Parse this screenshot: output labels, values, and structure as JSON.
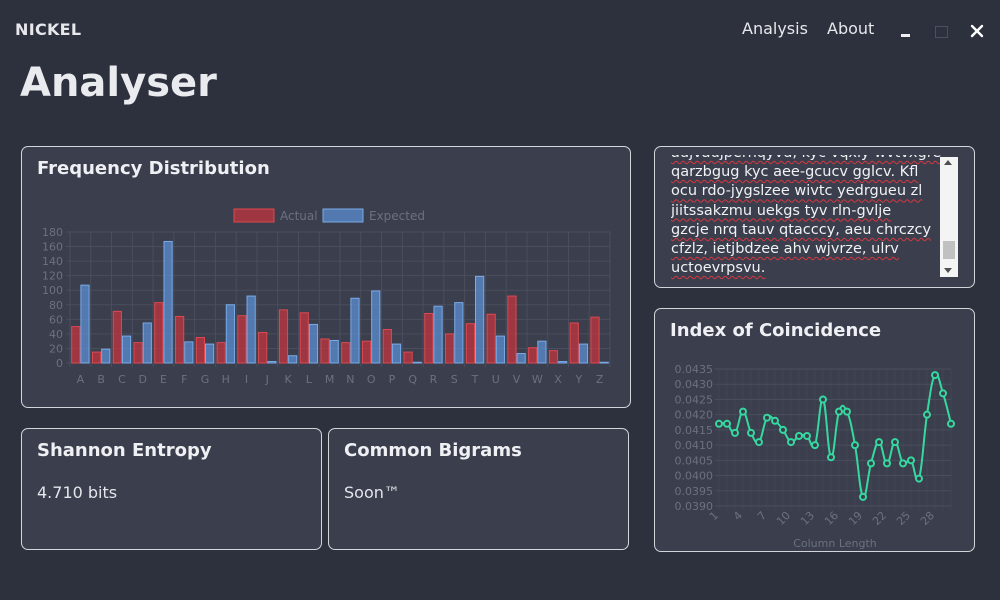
{
  "app": {
    "brand": "NICKEL",
    "nav": [
      {
        "label": "Analysis"
      },
      {
        "label": "About"
      }
    ],
    "page_title": "Analyser"
  },
  "colors": {
    "background": "#2d313e",
    "card": "#3a3e4d",
    "actual": "#c0363e",
    "expected": "#5b8fd2",
    "ioc_line": "#35d9a0"
  },
  "frequency": {
    "title": "Frequency Distribution",
    "chart_data": {
      "type": "bar",
      "categories": [
        "A",
        "B",
        "C",
        "D",
        "E",
        "F",
        "G",
        "H",
        "I",
        "J",
        "K",
        "L",
        "M",
        "N",
        "O",
        "P",
        "Q",
        "R",
        "S",
        "T",
        "U",
        "V",
        "W",
        "X",
        "Y",
        "Z"
      ],
      "series": [
        {
          "name": "Actual",
          "values": [
            50,
            15,
            71,
            28,
            83,
            64,
            35,
            28,
            65,
            42,
            73,
            69,
            33,
            28,
            30,
            46,
            15,
            68,
            40,
            54,
            67,
            92,
            21,
            17,
            55,
            63
          ]
        },
        {
          "name": "Expected",
          "values": [
            107,
            19,
            37,
            55,
            167,
            29,
            26,
            80,
            92,
            2,
            10,
            53,
            31,
            89,
            99,
            26,
            1,
            78,
            83,
            119,
            37,
            13,
            30,
            2,
            26,
            1
          ]
        }
      ],
      "ylim": [
        0,
        180
      ],
      "yticks": [
        0,
        20,
        40,
        60,
        80,
        100,
        120,
        140,
        160,
        180
      ],
      "legend_position": "top",
      "grid": true
    }
  },
  "text_panel": {
    "lines": [
      "aujvaujpernqyvd, kyc vqxly wvtvxgre",
      "qarzbgug kyc aee-gcucv gglcv. Kfl",
      "ocu rdo-jygslzee wivtc yedrgueu zl",
      "jiitssakzmu uekgs tyv rln-gvlje",
      "gzcje nrq tauv qtacccy, aeu chrczcy",
      "cfzlz, ietjbdzee ahv wjvrze, ulrv",
      "uctoevrpsvu."
    ]
  },
  "ioc": {
    "title": "Index of Coincidence",
    "chart_data": {
      "type": "line",
      "x": [
        1,
        2,
        3,
        4,
        5,
        6,
        7,
        8,
        9,
        10,
        11,
        12,
        13,
        14,
        15,
        16,
        17,
        18,
        19,
        20,
        21,
        22,
        23,
        24,
        25,
        26,
        27,
        28,
        29,
        30
      ],
      "series": [
        {
          "values": [
            0.0417,
            0.0417,
            0.0414,
            0.0421,
            0.0414,
            0.0411,
            0.0419,
            0.0418,
            0.0415,
            0.0411,
            0.0413,
            0.0413,
            0.041,
            0.0425,
            0.0406,
            0.0421,
            0.0421,
            0.041,
            0.0393,
            0.0404,
            0.0411,
            0.0404,
            0.0411,
            0.0404,
            0.0405,
            0.0399,
            0.042,
            0.0433,
            0.0427,
            0.0417
          ]
        }
      ],
      "xticks": [
        1,
        4,
        7,
        10,
        13,
        16,
        19,
        22,
        25,
        28
      ],
      "xtick_labels": [
        "1",
        "4",
        "7",
        "10",
        "13",
        "16",
        "19",
        "22",
        "25",
        "28"
      ],
      "yticks": [
        0.039,
        0.0395,
        0.04,
        0.0405,
        0.041,
        0.0415,
        0.042,
        0.0425,
        0.043,
        0.0435
      ],
      "ytick_labels": [
        "0.0390",
        "0.0395",
        "0.0400",
        "0.0405",
        "0.0410",
        "0.0415",
        "0.0420",
        "0.0425",
        "0.0430",
        "0.0435"
      ],
      "ylim": [
        0.039,
        0.0435
      ],
      "xlabel": "Column Length",
      "grid": true
    }
  },
  "entropy": {
    "title": "Shannon Entropy",
    "value": "4.710 bits"
  },
  "bigrams": {
    "title": "Common Bigrams",
    "value": "Soon™"
  }
}
